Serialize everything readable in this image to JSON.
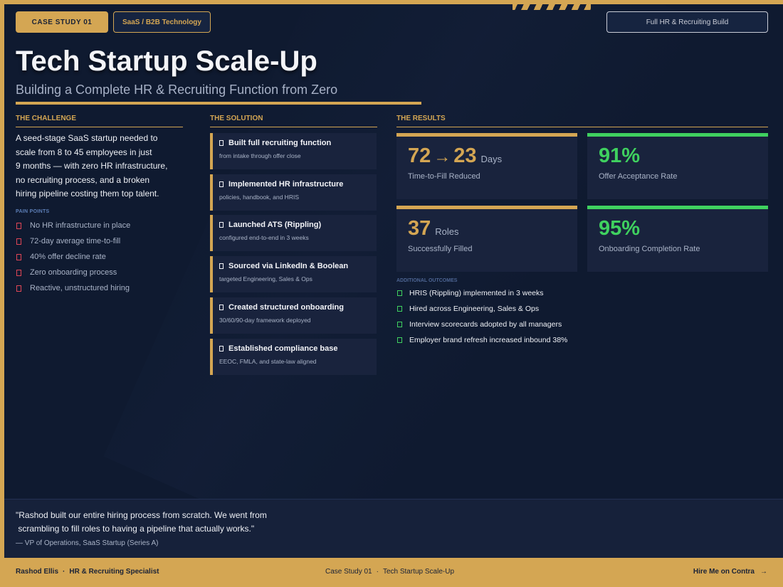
{
  "header": {
    "case_label": "CASE STUDY  01",
    "industry": "SaaS / B2B Technology",
    "build_type": "Full HR & Recruiting Build",
    "title": "Tech Startup Scale-Up",
    "subtitle": "Building a Complete HR & Recruiting Function from Zero"
  },
  "challenge": {
    "heading": "THE CHALLENGE",
    "lines": [
      "A seed-stage SaaS startup needed to",
      "scale from 8 to 45 employees in just",
      "9 months — with zero HR infrastructure,",
      "no recruiting process, and a broken",
      "hiring pipeline costing them top talent."
    ],
    "pain_heading": "PAIN POINTS",
    "pain_points": [
      "No HR infrastructure in place",
      "72-day average time-to-fill",
      "40% offer decline rate",
      "Zero onboarding process",
      "Reactive, unstructured hiring"
    ]
  },
  "solution": {
    "heading": "THE SOLUTION",
    "items": [
      {
        "title": "Built full recruiting function",
        "sub": "from intake through offer close"
      },
      {
        "title": "Implemented HR infrastructure",
        "sub": "policies, handbook, and HRIS"
      },
      {
        "title": "Launched ATS (Rippling)",
        "sub": "configured end-to-end in 3 weeks"
      },
      {
        "title": "Sourced via LinkedIn & Boolean",
        "sub": "targeted Engineering, Sales & Ops"
      },
      {
        "title": "Created structured onboarding",
        "sub": "30/60/90-day framework deployed"
      },
      {
        "title": "Established compliance base",
        "sub": "EEOC, FMLA, and state-law aligned"
      }
    ]
  },
  "results": {
    "heading": "THE RESULTS",
    "stats": [
      {
        "from": "72",
        "arrow": "→",
        "value": "23",
        "unit": "Days",
        "label": "Time-to-Fill Reduced",
        "accent": "#d4a653"
      },
      {
        "value": "91%",
        "unit": "",
        "label": "Offer Acceptance Rate",
        "accent": "#3fd15f"
      },
      {
        "value": "37",
        "unit": "Roles",
        "label": "Successfully Filled",
        "accent": "#d4a653"
      },
      {
        "value": "95%",
        "unit": "",
        "label": "Onboarding Completion Rate",
        "accent": "#3fd15f"
      }
    ],
    "additional_heading": "ADDITIONAL OUTCOMES",
    "additional": [
      "HRIS (Rippling) implemented in 3 weeks",
      "Hired across Engineering, Sales & Ops",
      "Interview scorecards adopted by all managers",
      "Employer brand refresh increased inbound 38%"
    ]
  },
  "quote": {
    "text": "\"Rashod built our entire hiring process from scratch. We went from\n scrambling to fill roles to having a pipeline that actually works.\"",
    "attribution": "— VP of Operations, SaaS Startup (Series A)"
  },
  "footer": {
    "name": "Rashod Ellis",
    "role": "HR & Recruiting Specialist",
    "case": "Case Study 01",
    "case_title": "Tech Startup Scale-Up",
    "cta": "Hire Me on Contra",
    "cta_arrow": "→"
  },
  "colors": {
    "gold": "#d4a653",
    "green": "#3fd15f",
    "red": "#e04656",
    "navy": "#0f1a30"
  }
}
